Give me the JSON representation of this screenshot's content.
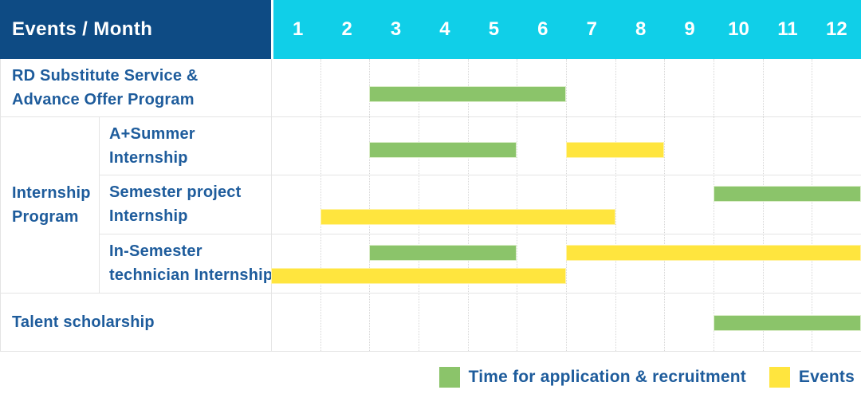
{
  "header": {
    "corner_label": "Events / Month",
    "months": [
      "1",
      "2",
      "3",
      "4",
      "5",
      "6",
      "7",
      "8",
      "9",
      "10",
      "11",
      "12"
    ]
  },
  "colors": {
    "header_navy": "#0E4B84",
    "header_cyan": "#10CFE8",
    "bar_green": "#8BC46A",
    "bar_yellow": "#FFE53E",
    "label_blue": "#1E5C9C",
    "grid_line": "#E4E4E4"
  },
  "legend": [
    {
      "id": "recruitment",
      "label": "Time for application & recruitment",
      "color": "#8BC46A"
    },
    {
      "id": "events",
      "label": "Events",
      "color": "#FFE53E"
    }
  ],
  "chart_data": {
    "type": "bar",
    "subtype": "gantt-month-timeline",
    "title": "Events / Month",
    "x_axis": {
      "title": "Month",
      "ticks": [
        1,
        2,
        3,
        4,
        5,
        6,
        7,
        8,
        9,
        10,
        11,
        12
      ],
      "range": [
        1,
        12
      ]
    },
    "grid": true,
    "legend_position": "bottom-right",
    "series_legend": [
      {
        "id": "recruitment",
        "label": "Time for application & recruitment",
        "color": "#8BC46A"
      },
      {
        "id": "events",
        "label": "Events",
        "color": "#FFE53E"
      }
    ],
    "group_label": "Internship Program",
    "group_label_lines": [
      "Internship",
      "Program"
    ],
    "rows": [
      {
        "group": "",
        "label": "RD Substitute Service & Advance Offer Program",
        "label_lines": [
          "RD Substitute Service &",
          "Advance Offer Program"
        ],
        "bars": [
          {
            "series": "recruitment",
            "start_month": 3,
            "end_month": 6,
            "lane": 0
          }
        ]
      },
      {
        "group": "Internship Program",
        "label": "A+Summer Internship",
        "label_lines": [
          "A+Summer",
          "Internship"
        ],
        "bars": [
          {
            "series": "recruitment",
            "start_month": 3,
            "end_month": 5,
            "lane": 0
          },
          {
            "series": "events",
            "start_month": 7,
            "end_month": 8,
            "lane": 0
          }
        ]
      },
      {
        "group": "Internship Program",
        "label": "Semester project Internship",
        "label_lines": [
          "Semester project",
          "Internship"
        ],
        "bars": [
          {
            "series": "recruitment",
            "start_month": 10,
            "end_month": 12,
            "lane": 0
          },
          {
            "series": "events",
            "start_month": 2,
            "end_month": 7,
            "lane": 1
          }
        ]
      },
      {
        "group": "Internship Program",
        "label": "In-Semester technician Internship",
        "label_lines": [
          "In-Semester",
          "technician Internship"
        ],
        "bars": [
          {
            "series": "recruitment",
            "start_month": 3,
            "end_month": 5,
            "lane": 0
          },
          {
            "series": "events",
            "start_month": 7,
            "end_month": 12,
            "lane": 0
          },
          {
            "series": "events",
            "start_month": 1,
            "end_month": 6,
            "lane": 1
          }
        ]
      },
      {
        "group": "",
        "label": "Talent scholarship",
        "label_lines": [
          "Talent scholarship"
        ],
        "bars": [
          {
            "series": "recruitment",
            "start_month": 10,
            "end_month": 12,
            "lane": 0
          }
        ]
      }
    ]
  }
}
